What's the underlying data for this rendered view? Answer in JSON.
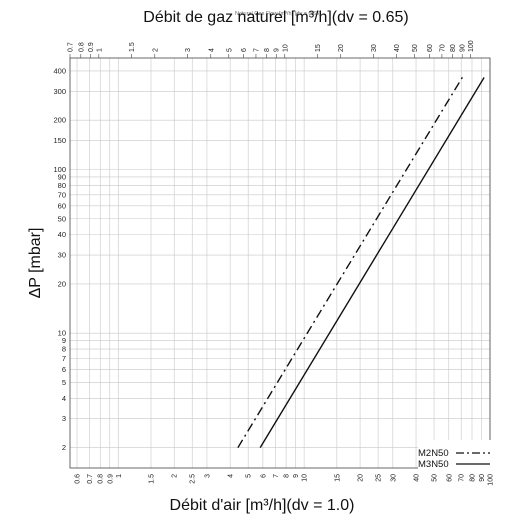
{
  "chart_data": {
    "type": "line",
    "title": "Débit de gaz naturel [m³/h](dv = 0.65)",
    "overlay_label": "Natural Gas Flow [m³/h] (dv = 0.65)",
    "xlabel": "Débit d'air [m³/h](dv = 1.0)",
    "ylabel": "ΔP [mbar]",
    "x_scale": "log",
    "y_scale": "log",
    "xlim": [
      0.55,
      100
    ],
    "ylim": [
      1.5,
      480
    ],
    "top_xlim": [
      0.7,
      127
    ],
    "grid": true,
    "legend_position": "bottom-right",
    "x_ticks": [
      "0.6",
      "0.7",
      "0.8",
      "0.9",
      "1",
      "1.5",
      "2",
      "2.5",
      "3",
      "4",
      "5",
      "6",
      "7",
      "8",
      "9",
      "10",
      "15",
      "20",
      "25",
      "30",
      "40",
      "50",
      "60",
      "70",
      "80",
      "90",
      "100"
    ],
    "top_ticks": [
      "0.7",
      "0.8",
      "0.9",
      "1",
      "1.5",
      "2",
      "3",
      "4",
      "5",
      "6",
      "7",
      "8",
      "9",
      "10",
      "15",
      "20",
      "30",
      "40",
      "50",
      "60",
      "70",
      "80",
      "90",
      "100"
    ],
    "y_ticks": [
      "2",
      "3",
      "4",
      "5",
      "6",
      "7",
      "8",
      "9",
      "10",
      "20",
      "30",
      "40",
      "50",
      "60",
      "70",
      "80",
      "90",
      "100",
      "150",
      "200",
      "300",
      "400"
    ],
    "series": [
      {
        "name": "M2N50",
        "style": "dash-dot",
        "x": [
          4.4,
          72
        ],
        "y": [
          2,
          375
        ]
      },
      {
        "name": "M3N50",
        "style": "solid",
        "x": [
          5.8,
          93
        ],
        "y": [
          2,
          365
        ]
      }
    ]
  },
  "colors": {
    "background": "#ffffff",
    "grid": "#c8c8c8",
    "axis": "#444444",
    "series": "#111111",
    "text": "#111111"
  }
}
